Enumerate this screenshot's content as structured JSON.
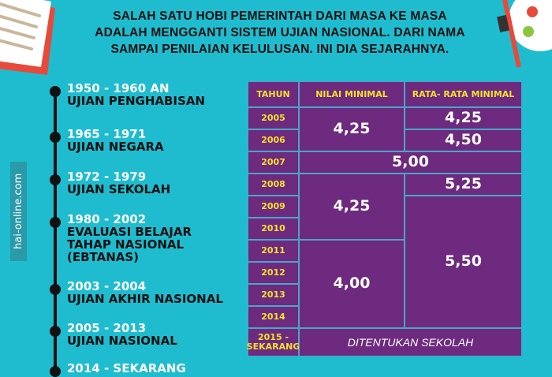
{
  "intro": "SALAH SATU HOBI PEMERINTAH DARI MASA KE MASA ADALAH MENGGANTI SISTEM UJIAN NASIONAL. DARI NAMA SAMPAI PENILAIAN KELULUSAN. INI DIA SEJARAHNYA.",
  "watermark": "hai-online.com",
  "colors": {
    "background": "#1fbccf",
    "table": "#6d2a7e",
    "header_text": "#f6e12b"
  },
  "timeline": [
    {
      "years": "1950 - 1960 AN",
      "name": [
        "UJIAN PENGHABISAN"
      ]
    },
    {
      "years": "1965 - 1971",
      "name": [
        "UJIAN NEGARA"
      ]
    },
    {
      "years": "1972 - 1979",
      "name": [
        "UJIAN SEKOLAH"
      ]
    },
    {
      "years": "1980 - 2002",
      "name": [
        "EVALUASI BELAJAR",
        "TAHAP NASIONAL",
        "(EBTANAS)"
      ]
    },
    {
      "years": "2003 - 2004",
      "name": [
        "UJIAN AKHIR NASIONAL"
      ]
    },
    {
      "years": "2005 - 2013",
      "name": [
        "UJIAN NASIONAL"
      ]
    },
    {
      "years": "2014 - SEKARANG",
      "name": []
    }
  ],
  "table": {
    "headers": [
      "TAHUN",
      "NILAI MINIMAL",
      "RATA- RATA MINIMAL"
    ],
    "years": [
      "2005",
      "2006",
      "2007",
      "2008",
      "2009",
      "2010",
      "2011",
      "2012",
      "2013",
      "2014",
      "2015 -\nSEKARANG"
    ],
    "nilai_minimal": [
      {
        "years": "2005-2006",
        "value": "4,25"
      },
      {
        "years": "2008-2010",
        "value": "4,25"
      },
      {
        "years": "2011-2014",
        "value": "4,00"
      }
    ],
    "rata_rata_minimal": [
      {
        "years": "2005",
        "value": "4,25"
      },
      {
        "years": "2006",
        "value": "4,50"
      },
      {
        "years": "2008",
        "value": "5,25"
      },
      {
        "years": "2009-2014",
        "value": "5,50"
      }
    ],
    "merged_2007": "5,00",
    "merged_2015": "DITENTUKAN SEKOLAH"
  }
}
